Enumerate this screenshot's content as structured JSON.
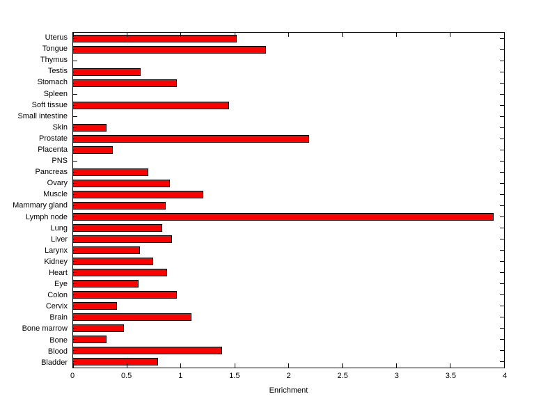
{
  "figure": {
    "background_color": "#ffffff",
    "axis_color": "#000000"
  },
  "chart_data": {
    "type": "bar",
    "orientation": "horizontal",
    "title": "",
    "xlabel": "Enrichment",
    "ylabel": "",
    "xlim": [
      0,
      4
    ],
    "xticks": [
      0,
      0.5,
      1,
      1.5,
      2,
      2.5,
      3,
      3.5,
      4
    ],
    "xtick_labels": [
      "0",
      "0.5",
      "1",
      "1.5",
      "2",
      "2.5",
      "3",
      "3.5",
      "4"
    ],
    "grid": false,
    "legend": null,
    "bar_color": "#ff0000",
    "bar_border_color": "#000000",
    "categories": [
      "Uterus",
      "Tongue",
      "Thymus",
      "Testis",
      "Stomach",
      "Spleen",
      "Soft tissue",
      "Small intestine",
      "Skin",
      "Prostate",
      "Placenta",
      "PNS",
      "Pancreas",
      "Ovary",
      "Muscle",
      "Mammary gland",
      "Lymph node",
      "Lung",
      "Liver",
      "Larynx",
      "Kidney",
      "Heart",
      "Eye",
      "Colon",
      "Cervix",
      "Brain",
      "Bone marrow",
      "Bone",
      "Blood",
      "Bladder"
    ],
    "values": [
      1.52,
      1.79,
      0,
      0.63,
      0.96,
      0,
      1.45,
      0,
      0.31,
      2.19,
      0.37,
      0,
      0.7,
      0.9,
      1.21,
      0.86,
      3.9,
      0.83,
      0.92,
      0.62,
      0.74,
      0.87,
      0.61,
      0.96,
      0.41,
      1.1,
      0.47,
      0.31,
      1.38,
      0.79
    ]
  }
}
